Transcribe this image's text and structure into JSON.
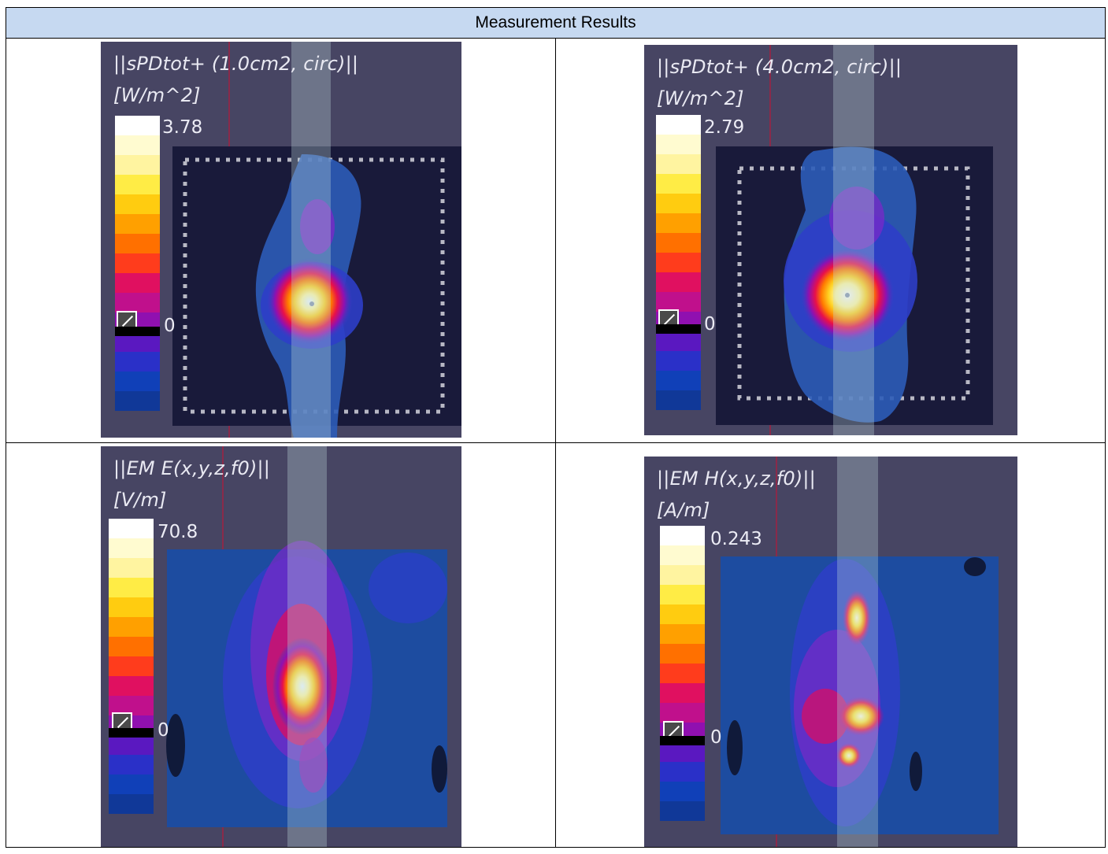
{
  "table": {
    "header": "Measurement Results"
  },
  "colormap": [
    "#ffffff",
    "#fffbd0",
    "#fff4a0",
    "#ffec45",
    "#ffcc10",
    "#ffa000",
    "#ff7000",
    "#ff3c1c",
    "#e01060",
    "#c0108c",
    "#9010b0",
    "#5a18c0",
    "#2a30c8",
    "#1040b8",
    "#103898"
  ],
  "plots": [
    {
      "title": "||sPDtot+ (1.0cm2, circ)||",
      "unit": "[W/m^2]",
      "max": "3.78",
      "min": "0"
    },
    {
      "title": "||sPDtot+ (4.0cm2, circ)||",
      "unit": "[W/m^2]",
      "max": "2.79",
      "min": "0"
    },
    {
      "title": "||EM E(x,y,z,f0)||",
      "unit": "[V/m]",
      "max": "70.8",
      "min": "0"
    },
    {
      "title": "||EM H(x,y,z,f0)||",
      "unit": "[A/m]",
      "max": "0.243",
      "min": "0"
    }
  ]
}
